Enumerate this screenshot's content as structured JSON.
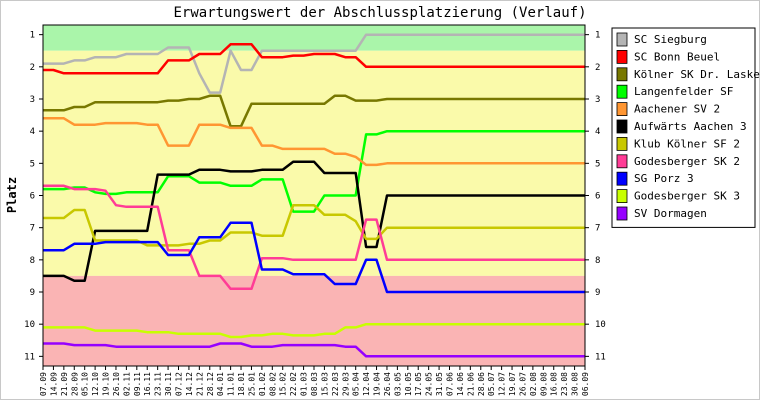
{
  "chart_data": {
    "type": "line",
    "title": "Erwartungswert der Abschlussplatzierung (Verlauf)",
    "ylabel": "Platz",
    "xlabel": "",
    "ylim": [
      11.3,
      0.7
    ],
    "yticks": [
      1,
      2,
      3,
      4,
      5,
      6,
      7,
      8,
      9,
      10,
      11
    ],
    "bands": [
      {
        "from": 0.5,
        "to": 1.5,
        "color": "#aaf5aa"
      },
      {
        "from": 1.5,
        "to": 8.5,
        "color": "#fafaaa"
      },
      {
        "from": 8.5,
        "to": 11.5,
        "color": "#fab4b4"
      }
    ],
    "x": [
      "07.09",
      "14.09",
      "21.09",
      "28.09",
      "05.10",
      "12.10",
      "19.10",
      "26.10",
      "02.11",
      "09.11",
      "16.11",
      "23.11",
      "30.11",
      "07.12",
      "14.12",
      "21.12",
      "28.12",
      "04.01",
      "11.01",
      "18.01",
      "25.01",
      "01.02",
      "08.02",
      "15.02",
      "22.02",
      "01.03",
      "08.03",
      "15.03",
      "22.03",
      "29.03",
      "05.04",
      "12.04",
      "19.04",
      "26.04",
      "03.05",
      "10.05",
      "17.05",
      "24.05",
      "31.05",
      "07.06",
      "14.06",
      "21.06",
      "28.06",
      "05.07",
      "12.07",
      "19.07",
      "26.07",
      "02.08",
      "09.08",
      "16.08",
      "23.08",
      "30.08",
      "06.09"
    ],
    "series": [
      {
        "name": "SC Siegburg",
        "color": "#b4b4b4",
        "values": [
          1.9,
          1.9,
          1.9,
          1.8,
          1.8,
          1.7,
          1.7,
          1.7,
          1.6,
          1.6,
          1.6,
          1.6,
          1.4,
          1.4,
          1.4,
          2.2,
          2.8,
          2.8,
          1.5,
          2.1,
          2.1,
          1.5,
          1.5,
          1.5,
          1.5,
          1.5,
          1.5,
          1.5,
          1.5,
          1.5,
          1.5,
          1.0,
          1.0,
          1.0,
          1.0,
          1.0,
          1.0,
          1.0,
          1.0,
          1.0,
          1.0,
          1.0,
          1.0,
          1.0,
          1.0,
          1.0,
          1.0,
          1.0,
          1.0,
          1.0,
          1.0,
          1.0,
          1.0
        ]
      },
      {
        "name": "SC Bonn Beuel",
        "color": "#ff0000",
        "values": [
          2.1,
          2.1,
          2.2,
          2.2,
          2.2,
          2.2,
          2.2,
          2.2,
          2.2,
          2.2,
          2.2,
          2.2,
          1.8,
          1.8,
          1.8,
          1.6,
          1.6,
          1.6,
          1.3,
          1.3,
          1.3,
          1.7,
          1.7,
          1.7,
          1.65,
          1.65,
          1.6,
          1.6,
          1.6,
          1.7,
          1.7,
          2.0,
          2.0,
          2.0,
          2.0,
          2.0,
          2.0,
          2.0,
          2.0,
          2.0,
          2.0,
          2.0,
          2.0,
          2.0,
          2.0,
          2.0,
          2.0,
          2.0,
          2.0,
          2.0,
          2.0,
          2.0,
          2.0
        ]
      },
      {
        "name": "Kölner SK Dr. Lasker",
        "color": "#787800",
        "values": [
          3.35,
          3.35,
          3.35,
          3.25,
          3.25,
          3.1,
          3.1,
          3.1,
          3.1,
          3.1,
          3.1,
          3.1,
          3.05,
          3.05,
          3.0,
          3.0,
          2.9,
          2.9,
          3.85,
          3.85,
          3.15,
          3.15,
          3.15,
          3.15,
          3.15,
          3.15,
          3.15,
          3.15,
          2.9,
          2.9,
          3.05,
          3.05,
          3.05,
          3.0,
          3.0,
          3.0,
          3.0,
          3.0,
          3.0,
          3.0,
          3.0,
          3.0,
          3.0,
          3.0,
          3.0,
          3.0,
          3.0,
          3.0,
          3.0,
          3.0,
          3.0,
          3.0,
          3.0
        ]
      },
      {
        "name": "Langenfelder SF",
        "color": "#00ff00",
        "values": [
          5.8,
          5.8,
          5.8,
          5.75,
          5.75,
          5.9,
          5.95,
          5.95,
          5.9,
          5.9,
          5.9,
          5.9,
          5.4,
          5.4,
          5.4,
          5.6,
          5.6,
          5.6,
          5.7,
          5.7,
          5.7,
          5.5,
          5.5,
          5.5,
          6.5,
          6.5,
          6.5,
          6.0,
          6.0,
          6.0,
          6.0,
          4.1,
          4.1,
          4.0,
          4.0,
          4.0,
          4.0,
          4.0,
          4.0,
          4.0,
          4.0,
          4.0,
          4.0,
          4.0,
          4.0,
          4.0,
          4.0,
          4.0,
          4.0,
          4.0,
          4.0,
          4.0,
          4.0
        ]
      },
      {
        "name": "Aachener SV 2",
        "color": "#ff9632",
        "values": [
          3.6,
          3.6,
          3.6,
          3.8,
          3.8,
          3.8,
          3.75,
          3.75,
          3.75,
          3.75,
          3.8,
          3.8,
          4.45,
          4.45,
          4.45,
          3.8,
          3.8,
          3.8,
          3.9,
          3.9,
          3.9,
          4.45,
          4.45,
          4.55,
          4.55,
          4.55,
          4.55,
          4.55,
          4.7,
          4.7,
          4.8,
          5.05,
          5.05,
          5.0,
          5.0,
          5.0,
          5.0,
          5.0,
          5.0,
          5.0,
          5.0,
          5.0,
          5.0,
          5.0,
          5.0,
          5.0,
          5.0,
          5.0,
          5.0,
          5.0,
          5.0,
          5.0,
          5.0
        ]
      },
      {
        "name": "Aufwärts Aachen 3",
        "color": "#000000",
        "values": [
          8.5,
          8.5,
          8.5,
          8.65,
          8.65,
          7.1,
          7.1,
          7.1,
          7.1,
          7.1,
          7.1,
          5.35,
          5.35,
          5.35,
          5.35,
          5.2,
          5.2,
          5.2,
          5.25,
          5.25,
          5.25,
          5.2,
          5.2,
          5.2,
          4.95,
          4.95,
          4.95,
          5.3,
          5.3,
          5.3,
          5.3,
          7.6,
          7.6,
          6.0,
          6.0,
          6.0,
          6.0,
          6.0,
          6.0,
          6.0,
          6.0,
          6.0,
          6.0,
          6.0,
          6.0,
          6.0,
          6.0,
          6.0,
          6.0,
          6.0,
          6.0,
          6.0,
          6.0
        ]
      },
      {
        "name": "Klub Kölner SF 2",
        "color": "#c8c800",
        "values": [
          6.7,
          6.7,
          6.7,
          6.45,
          6.45,
          7.4,
          7.4,
          7.4,
          7.4,
          7.4,
          7.55,
          7.55,
          7.55,
          7.55,
          7.5,
          7.5,
          7.4,
          7.4,
          7.15,
          7.15,
          7.15,
          7.25,
          7.25,
          7.25,
          6.3,
          6.3,
          6.3,
          6.6,
          6.6,
          6.6,
          6.8,
          7.35,
          7.35,
          7.0,
          7.0,
          7.0,
          7.0,
          7.0,
          7.0,
          7.0,
          7.0,
          7.0,
          7.0,
          7.0,
          7.0,
          7.0,
          7.0,
          7.0,
          7.0,
          7.0,
          7.0,
          7.0,
          7.0
        ]
      },
      {
        "name": "Godesberger SK 2",
        "color": "#ff3c96",
        "values": [
          5.7,
          5.7,
          5.7,
          5.8,
          5.8,
          5.8,
          5.85,
          6.3,
          6.35,
          6.35,
          6.35,
          6.35,
          7.7,
          7.7,
          7.7,
          8.5,
          8.5,
          8.5,
          8.9,
          8.9,
          8.9,
          7.95,
          7.95,
          7.95,
          8.0,
          8.0,
          8.0,
          8.0,
          8.0,
          8.0,
          8.0,
          6.75,
          6.75,
          8.0,
          8.0,
          8.0,
          8.0,
          8.0,
          8.0,
          8.0,
          8.0,
          8.0,
          8.0,
          8.0,
          8.0,
          8.0,
          8.0,
          8.0,
          8.0,
          8.0,
          8.0,
          8.0,
          8.0
        ]
      },
      {
        "name": "SG Porz 3",
        "color": "#0000ff",
        "values": [
          7.7,
          7.7,
          7.7,
          7.5,
          7.5,
          7.5,
          7.45,
          7.45,
          7.45,
          7.45,
          7.45,
          7.45,
          7.85,
          7.85,
          7.85,
          7.3,
          7.3,
          7.3,
          6.85,
          6.85,
          6.85,
          8.3,
          8.3,
          8.3,
          8.45,
          8.45,
          8.45,
          8.45,
          8.75,
          8.75,
          8.75,
          8.0,
          8.0,
          9.0,
          9.0,
          9.0,
          9.0,
          9.0,
          9.0,
          9.0,
          9.0,
          9.0,
          9.0,
          9.0,
          9.0,
          9.0,
          9.0,
          9.0,
          9.0,
          9.0,
          9.0,
          9.0,
          9.0
        ]
      },
      {
        "name": "Godesberger SK 3",
        "color": "#c8ff00",
        "values": [
          10.1,
          10.1,
          10.1,
          10.1,
          10.1,
          10.2,
          10.2,
          10.2,
          10.2,
          10.2,
          10.25,
          10.25,
          10.25,
          10.3,
          10.3,
          10.3,
          10.3,
          10.3,
          10.4,
          10.4,
          10.35,
          10.35,
          10.3,
          10.3,
          10.35,
          10.35,
          10.35,
          10.3,
          10.3,
          10.1,
          10.1,
          10.0,
          10.0,
          10.0,
          10.0,
          10.0,
          10.0,
          10.0,
          10.0,
          10.0,
          10.0,
          10.0,
          10.0,
          10.0,
          10.0,
          10.0,
          10.0,
          10.0,
          10.0,
          10.0,
          10.0,
          10.0,
          10.0
        ]
      },
      {
        "name": "SV Dormagen",
        "color": "#9600ff",
        "values": [
          10.6,
          10.6,
          10.6,
          10.65,
          10.65,
          10.65,
          10.65,
          10.7,
          10.7,
          10.7,
          10.7,
          10.7,
          10.7,
          10.7,
          10.7,
          10.7,
          10.7,
          10.6,
          10.6,
          10.6,
          10.7,
          10.7,
          10.7,
          10.65,
          10.65,
          10.65,
          10.65,
          10.65,
          10.65,
          10.7,
          10.7,
          11.0,
          11.0,
          11.0,
          11.0,
          11.0,
          11.0,
          11.0,
          11.0,
          11.0,
          11.0,
          11.0,
          11.0,
          11.0,
          11.0,
          11.0,
          11.0,
          11.0,
          11.0,
          11.0,
          11.0,
          11.0,
          11.0
        ]
      }
    ]
  }
}
